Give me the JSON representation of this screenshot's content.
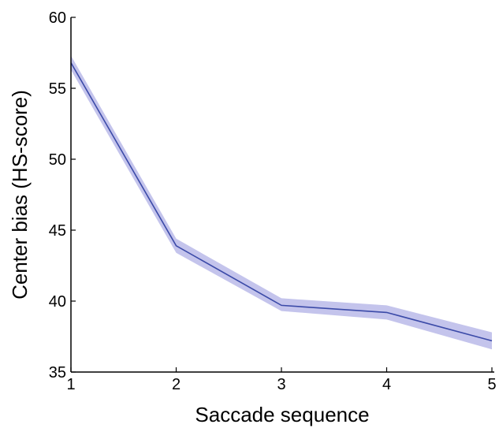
{
  "chart_data": {
    "type": "line",
    "title": "",
    "xlabel": "Saccade sequence",
    "ylabel": "Center bias (HS-score)",
    "xlim": [
      1,
      5
    ],
    "ylim": [
      35,
      60
    ],
    "xticks": [
      1,
      2,
      3,
      4,
      5
    ],
    "yticks": [
      35,
      40,
      45,
      50,
      55,
      60
    ],
    "grid": false,
    "legend": "none",
    "series": [
      {
        "x": [
          1,
          2,
          3,
          4,
          5
        ],
        "y": [
          56.8,
          43.9,
          39.7,
          39.2,
          37.2
        ],
        "error_lower": [
          56.3,
          43.4,
          39.3,
          38.7,
          36.6
        ],
        "error_upper": [
          57.3,
          44.4,
          40.2,
          39.7,
          37.8
        ],
        "line_color": "#3b4aa8",
        "band_color": "#c4c4ec"
      }
    ]
  }
}
